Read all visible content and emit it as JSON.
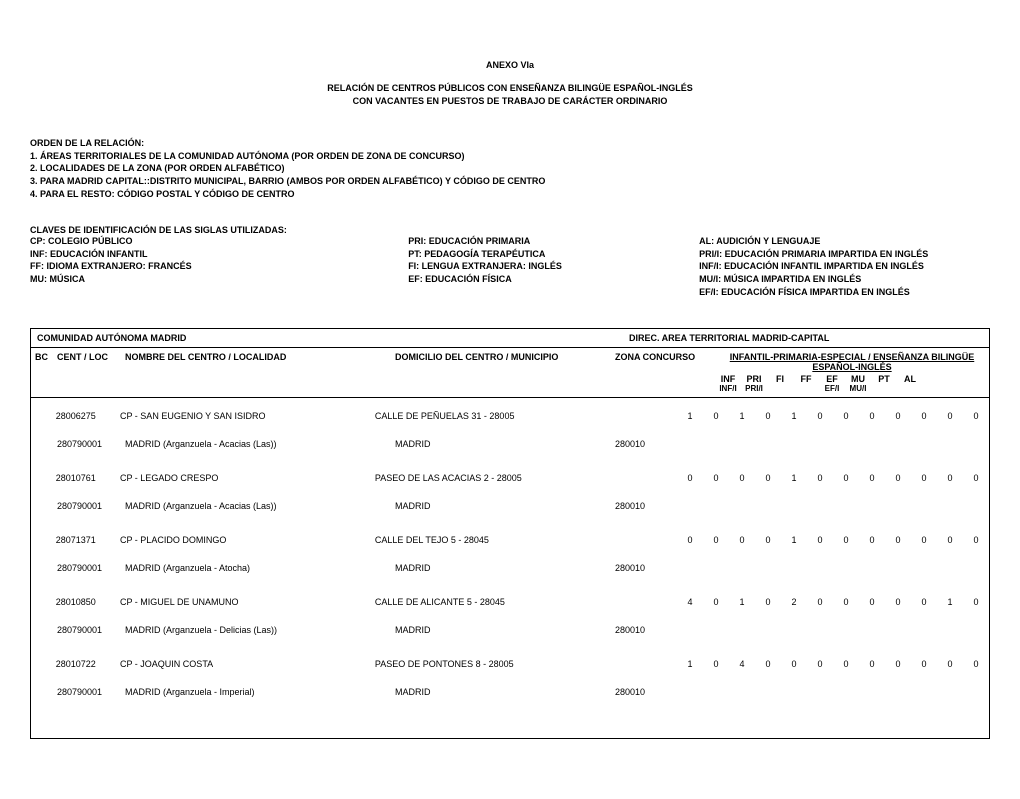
{
  "header": {
    "title": "ANEXO VIa",
    "subtitle1": "RELACIÓN DE CENTROS  PÚBLICOS CON ENSEÑANZA BILINGÜE ESPAÑOL-INGLÉS",
    "subtitle2": "CON VACANTES EN PUESTOS DE TRABAJO DE CARÁCTER ORDINARIO"
  },
  "orden": {
    "title": "ORDEN DE LA RELACIÓN:",
    "l1": "1. ÁREAS TERRITORIALES DE LA COMUNIDAD AUTÓNOMA (POR ORDEN DE ZONA DE CONCURSO)",
    "l2": "2. LOCALIDADES DE LA ZONA (POR ORDEN ALFABÉTICO)",
    "l3": "3. PARA MADRID CAPITAL::DISTRITO MUNICIPAL, BARRIO (AMBOS POR ORDEN ALFABÉTICO) Y CÓDIGO DE CENTRO",
    "l4": "4. PARA EL RESTO: CÓDIGO POSTAL Y CÓDIGO DE CENTRO"
  },
  "legend": {
    "title": "CLAVES DE IDENTIFICACIÓN DE LAS SIGLAS UTILIZADAS:",
    "col1": [
      "CP: COLEGIO PÚBLICO",
      "INF: EDUCACIÓN INFANTIL",
      "FF: IDIOMA EXTRANJERO: FRANCÉS",
      "MU: MÚSICA"
    ],
    "col2": [
      "PRI: EDUCACIÓN PRIMARIA",
      "PT: PEDAGOGÍA TERAPÉUTICA",
      "FI: LENGUA EXTRANJERA: INGLÉS",
      "EF: EDUCACIÓN FÍSICA"
    ],
    "col3": [
      "AL: AUDICIÓN Y LENGUAJE",
      "PRI/I: EDUCACIÓN PRIMARIA IMPARTIDA EN INGLÉS",
      "INF/I: EDUCACIÓN INFANTIL IMPARTIDA EN INGLÉS",
      "MU/I: MÚSICA IMPARTIDA EN INGLÉS",
      "EF/I: EDUCACIÓN FÍSICA IMPARTIDA EN INGLÉS"
    ]
  },
  "table": {
    "org": "COMUNIDAD AUTÓNOMA MADRID",
    "area": "DIREC.  AREA TERRITORIAL MADRID-CAPITAL",
    "cols": {
      "bc": "BC",
      "centloc": "CENT / LOC",
      "nombre": "NOMBRE DEL CENTRO / LOCALIDAD",
      "dom": "DOMICILIO DEL CENTRO / MUNICIPIO",
      "zona": "ZONA CONCURSO",
      "group": "INFANTIL-PRIMARIA-ESPECIAL / ENSEÑANZA BILINGÜE ESPAÑOL-INGLÉS",
      "n": [
        "INF",
        "INF/I",
        "PRI",
        "PRI/I",
        "FI",
        "FF",
        "EF",
        "EF/I",
        "MU",
        "MU/I",
        "PT",
        "AL"
      ]
    },
    "entries": [
      {
        "code": "28006275",
        "name": "CP - SAN EUGENIO Y SAN ISIDRO",
        "dom": "CALLE DE PEÑUELAS 31 - 28005",
        "zona": "",
        "loc_code": "280790001",
        "loc_name": "MADRID (Arganzuela - Acacias (Las))",
        "loc_dom": "MADRID",
        "loc_zona": "280010",
        "nums": [
          "1",
          "0",
          "1",
          "0",
          "1",
          "0",
          "0",
          "0",
          "0",
          "0",
          "0",
          "0"
        ]
      },
      {
        "code": "28010761",
        "name": "CP - LEGADO CRESPO",
        "dom": "PASEO DE LAS ACACIAS 2 - 28005",
        "zona": "",
        "loc_code": "280790001",
        "loc_name": "MADRID (Arganzuela - Acacias (Las))",
        "loc_dom": "MADRID",
        "loc_zona": "280010",
        "nums": [
          "0",
          "0",
          "0",
          "0",
          "1",
          "0",
          "0",
          "0",
          "0",
          "0",
          "0",
          "0"
        ]
      },
      {
        "code": "28071371",
        "name": "CP - PLACIDO DOMINGO",
        "dom": "CALLE DEL TEJO 5 - 28045",
        "zona": "",
        "loc_code": "280790001",
        "loc_name": "MADRID (Arganzuela - Atocha)",
        "loc_dom": "MADRID",
        "loc_zona": "280010",
        "nums": [
          "0",
          "0",
          "0",
          "0",
          "1",
          "0",
          "0",
          "0",
          "0",
          "0",
          "0",
          "0"
        ]
      },
      {
        "code": "28010850",
        "name": "CP - MIGUEL DE UNAMUNO",
        "dom": "CALLE DE ALICANTE 5 - 28045",
        "zona": "",
        "loc_code": "280790001",
        "loc_name": "MADRID (Arganzuela - Delicias (Las))",
        "loc_dom": "MADRID",
        "loc_zona": "280010",
        "nums": [
          "4",
          "0",
          "1",
          "0",
          "2",
          "0",
          "0",
          "0",
          "0",
          "0",
          "1",
          "0"
        ]
      },
      {
        "code": "28010722",
        "name": "CP - JOAQUIN COSTA",
        "dom": "PASEO DE PONTONES 8 - 28005",
        "zona": "",
        "loc_code": "280790001",
        "loc_name": "MADRID (Arganzuela - Imperial)",
        "loc_dom": "MADRID",
        "loc_zona": "280010",
        "nums": [
          "1",
          "0",
          "4",
          "0",
          "0",
          "0",
          "0",
          "0",
          "0",
          "0",
          "0",
          "0"
        ]
      }
    ]
  }
}
